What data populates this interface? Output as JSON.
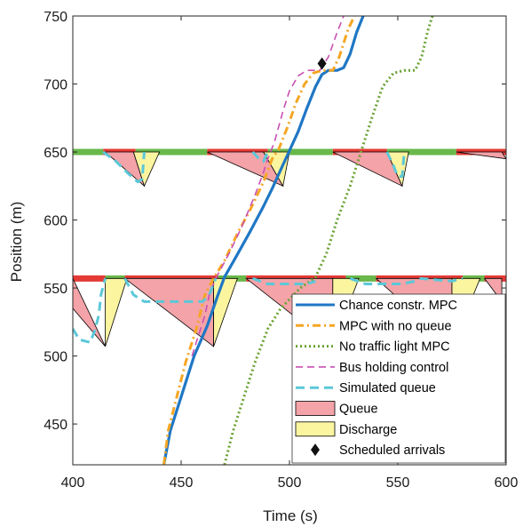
{
  "chart_data": {
    "type": "line",
    "title": "",
    "xlabel": "Time (s)",
    "ylabel": "Position (m)",
    "xlim": [
      400,
      600
    ],
    "ylim": [
      420,
      750
    ],
    "xticks": [
      400,
      450,
      500,
      550,
      600
    ],
    "yticks": [
      450,
      500,
      550,
      600,
      650,
      700,
      750
    ],
    "grid": false,
    "legend_position": "bottom-right",
    "intersections": [
      {
        "position": 557,
        "red_phases": [
          [
            400,
            415
          ],
          [
            424,
            467
          ],
          [
            480,
            526
          ],
          [
            540,
            580
          ],
          [
            590,
            600
          ]
        ],
        "green_phases": [
          [
            415,
            424
          ],
          [
            467,
            480
          ],
          [
            526,
            540
          ],
          [
            580,
            590
          ]
        ],
        "queue_triangles": [
          [
            [
              400,
              557
            ],
            [
              400,
              535
            ],
            [
              415,
              507
            ]
          ],
          [
            [
              424,
              557
            ],
            [
              465,
              557
            ],
            [
              465,
              507
            ]
          ],
          [
            [
              480,
              557
            ],
            [
              520,
              557
            ],
            [
              520,
              507
            ]
          ],
          [
            [
              540,
              557
            ],
            [
              575,
              557
            ],
            [
              575,
              507
            ]
          ],
          [
            [
              590,
              557
            ],
            [
              598,
              557
            ],
            [
              598,
              540
            ]
          ]
        ],
        "discharge_triangles": [
          [
            [
              415,
              557
            ],
            [
              415,
              507
            ],
            [
              425,
              557
            ]
          ],
          [
            [
              465,
              557
            ],
            [
              465,
              507
            ],
            [
              476,
              557
            ]
          ],
          [
            [
              520,
              557
            ],
            [
              520,
              507
            ],
            [
              532,
              557
            ]
          ],
          [
            [
              575,
              557
            ],
            [
              575,
              507
            ],
            [
              588,
              557
            ]
          ]
        ]
      },
      {
        "position": 650,
        "red_phases": [
          [
            414,
            429
          ],
          [
            462,
            490
          ],
          [
            520,
            545
          ],
          [
            577,
            600
          ]
        ],
        "green_phases": [
          [
            400,
            414
          ],
          [
            429,
            462
          ],
          [
            490,
            520
          ],
          [
            545,
            577
          ]
        ],
        "queue_triangles": [
          [
            [
              415,
              650
            ],
            [
              428,
              650
            ],
            [
              433,
              625
            ]
          ],
          [
            [
              462,
              650
            ],
            [
              488,
              650
            ],
            [
              497,
              625
            ]
          ],
          [
            [
              520,
              650
            ],
            [
              545,
              650
            ],
            [
              552,
              625
            ]
          ],
          [
            [
              577,
              650
            ],
            [
              598,
              650
            ],
            [
              600,
              645
            ]
          ]
        ],
        "discharge_triangles": [
          [
            [
              428,
              650
            ],
            [
              433,
              625
            ],
            [
              440,
              650
            ]
          ],
          [
            [
              488,
              650
            ],
            [
              497,
              625
            ],
            [
              500,
              650
            ]
          ],
          [
            [
              545,
              650
            ],
            [
              552,
              625
            ],
            [
              555,
              650
            ]
          ]
        ]
      }
    ],
    "series": [
      {
        "name": "Chance constr. MPC",
        "color": "#1f77c4",
        "style": "solid",
        "points": [
          [
            442,
            420
          ],
          [
            445,
            445
          ],
          [
            450,
            470
          ],
          [
            456,
            500
          ],
          [
            462,
            522
          ],
          [
            467,
            545
          ],
          [
            470,
            558
          ],
          [
            475,
            572
          ],
          [
            482,
            592
          ],
          [
            488,
            610
          ],
          [
            492,
            623
          ],
          [
            496,
            637
          ],
          [
            500,
            651
          ],
          [
            504,
            665
          ],
          [
            508,
            682
          ],
          [
            512,
            698
          ],
          [
            515,
            707
          ],
          [
            518,
            710
          ],
          [
            522,
            710
          ],
          [
            525,
            712
          ],
          [
            528,
            722
          ],
          [
            531,
            738
          ],
          [
            534,
            750
          ]
        ]
      },
      {
        "name": "MPC with no queue",
        "color": "#f5a623",
        "style": "dashdot",
        "points": [
          [
            442,
            420
          ],
          [
            444,
            445
          ],
          [
            448,
            470
          ],
          [
            452,
            495
          ],
          [
            457,
            520
          ],
          [
            461,
            545
          ],
          [
            465,
            557
          ],
          [
            470,
            570
          ],
          [
            476,
            590
          ],
          [
            482,
            608
          ],
          [
            488,
            628
          ],
          [
            492,
            645
          ],
          [
            495,
            652
          ],
          [
            499,
            668
          ],
          [
            503,
            686
          ],
          [
            507,
            700
          ],
          [
            511,
            708
          ],
          [
            515,
            710
          ],
          [
            520,
            710
          ],
          [
            523,
            720
          ],
          [
            527,
            740
          ],
          [
            530,
            750
          ]
        ]
      },
      {
        "name": "No traffic light MPC",
        "color": "#6aa333",
        "style": "dotted",
        "points": [
          [
            470,
            420
          ],
          [
            474,
            445
          ],
          [
            479,
            470
          ],
          [
            484,
            495
          ],
          [
            490,
            520
          ],
          [
            496,
            535
          ],
          [
            505,
            550
          ],
          [
            512,
            558
          ],
          [
            517,
            575
          ],
          [
            522,
            600
          ],
          [
            528,
            625
          ],
          [
            533,
            650
          ],
          [
            538,
            675
          ],
          [
            543,
            698
          ],
          [
            548,
            708
          ],
          [
            553,
            710
          ],
          [
            558,
            710
          ],
          [
            561,
            720
          ],
          [
            564,
            740
          ],
          [
            566,
            750
          ]
        ]
      },
      {
        "name": "Bus holding control",
        "color": "#c94fb2",
        "style": "dashed",
        "points": [
          [
            455,
            500
          ],
          [
            458,
            515
          ],
          [
            461,
            530
          ],
          [
            463,
            545
          ],
          [
            466,
            557
          ],
          [
            472,
            575
          ],
          [
            478,
            595
          ],
          [
            484,
            618
          ],
          [
            488,
            635
          ],
          [
            490,
            645
          ],
          [
            493,
            657
          ],
          [
            497,
            680
          ],
          [
            500,
            695
          ],
          [
            504,
            706
          ],
          [
            508,
            710
          ],
          [
            514,
            710
          ],
          [
            518,
            720
          ],
          [
            522,
            738
          ],
          [
            525,
            750
          ]
        ]
      },
      {
        "name": "Simulated queue",
        "color": "#5bc8d8",
        "style": "dashed",
        "segments": [
          [
            [
              400,
              520
            ],
            [
              403,
              512
            ],
            [
              408,
              510
            ],
            [
              410,
              518
            ],
            [
              412,
              530
            ],
            [
              413,
              545
            ],
            [
              415,
              557
            ]
          ],
          [
            [
              424,
              557
            ],
            [
              428,
              545
            ],
            [
              433,
              540
            ],
            [
              440,
              540
            ],
            [
              450,
              540
            ],
            [
              460,
              540
            ],
            [
              463,
              545
            ],
            [
              466,
              557
            ]
          ],
          [
            [
              483,
              557
            ],
            [
              490,
              553
            ],
            [
              500,
              553
            ],
            [
              508,
              553
            ],
            [
              512,
              555
            ]
          ],
          [
            [
              528,
              557
            ],
            [
              535,
              553
            ],
            [
              545,
              553
            ],
            [
              552,
              553
            ],
            [
              558,
              555
            ]
          ],
          [
            [
              560,
              557
            ],
            [
              575,
              555
            ],
            [
              580,
              557
            ]
          ],
          [
            [
              414,
              650
            ],
            [
              420,
              643
            ],
            [
              425,
              635
            ],
            [
              430,
              628
            ],
            [
              432,
              630
            ],
            [
              433,
              650
            ]
          ],
          [
            [
              483,
              650
            ],
            [
              486,
              645
            ],
            [
              488,
              643
            ],
            [
              490,
              650
            ]
          ],
          [
            [
              545,
              650
            ],
            [
              548,
              640
            ],
            [
              550,
              632
            ],
            [
              552,
              632
            ],
            [
              553,
              650
            ]
          ]
        ]
      }
    ],
    "scheduled_arrivals": [
      [
        515,
        715
      ]
    ],
    "legend": [
      {
        "label": "Chance constr. MPC",
        "kind": "line",
        "color": "#1f77c4",
        "dash": ""
      },
      {
        "label": "MPC with no queue",
        "kind": "line",
        "color": "#f5a623",
        "dash": "9 4 2 4"
      },
      {
        "label": "No traffic light MPC",
        "kind": "line",
        "color": "#6aa333",
        "dash": "2 3"
      },
      {
        "label": "Bus holding control",
        "kind": "line",
        "color": "#c94fb2",
        "dash": "8 5"
      },
      {
        "label": "Simulated queue",
        "kind": "line",
        "color": "#5bc8d8",
        "dash": "10 6"
      },
      {
        "label": "Queue",
        "kind": "patch",
        "color": "#f4a3a8"
      },
      {
        "label": "Discharge",
        "kind": "patch",
        "color": "#fbf5a0"
      },
      {
        "label": "Scheduled arrivals",
        "kind": "diamond",
        "color": "#111111"
      }
    ],
    "colors": {
      "red_phase": "#e53935",
      "green_phase": "#69b84a",
      "queue_fill": "#f4a3a8",
      "discharge_fill": "#fbf5a0",
      "axis": "#262626"
    }
  }
}
